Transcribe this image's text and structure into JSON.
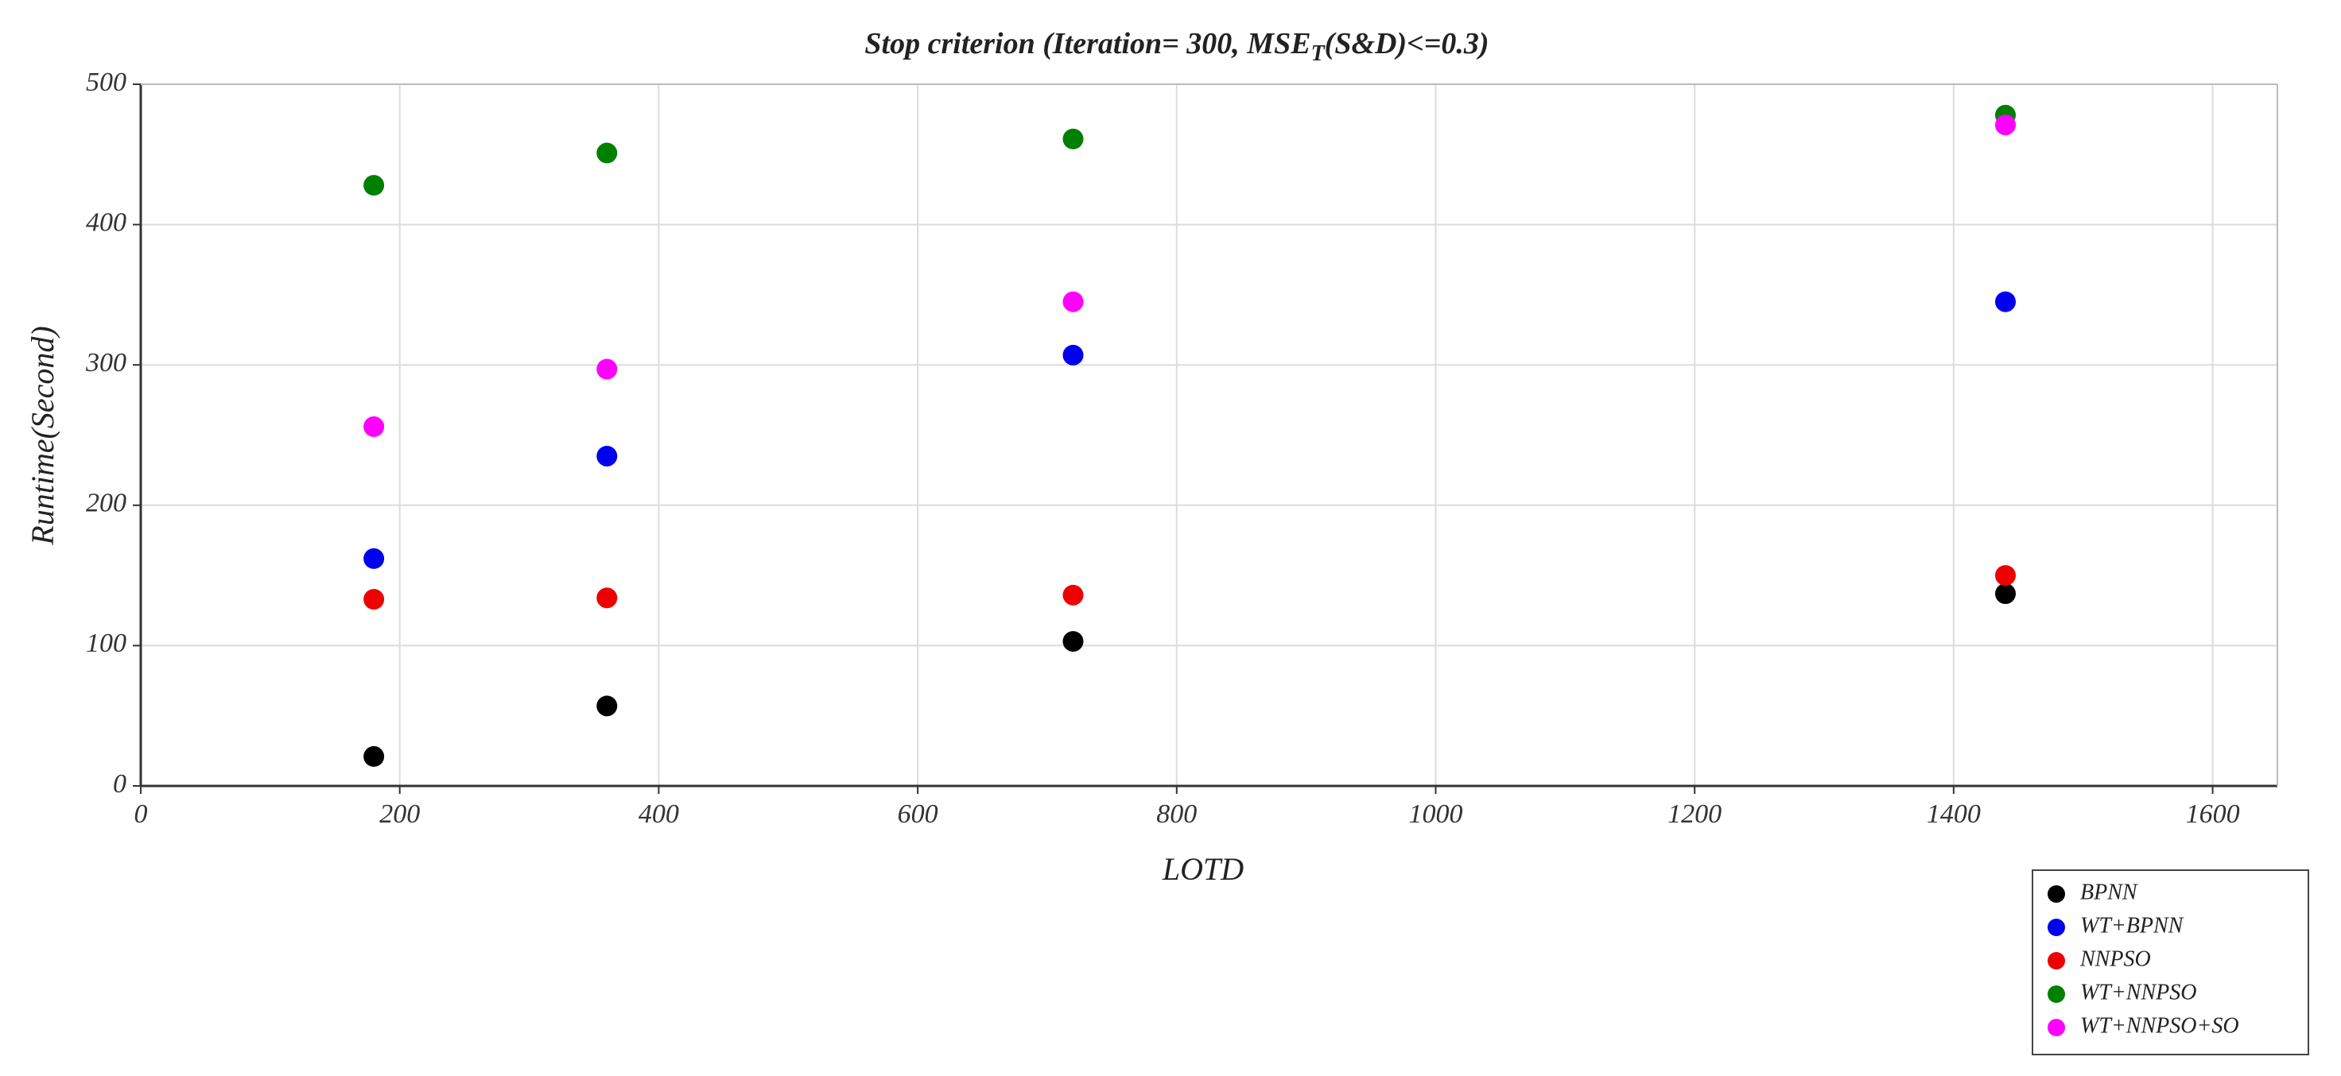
{
  "chart_data": {
    "type": "scatter",
    "title": [
      "Stop criterion (Iteration= 300, MSE",
      "T",
      "(S&D)<=0.3)"
    ],
    "xlabel": "LOTD",
    "ylabel": "Runtime(Second)",
    "xlim": [
      0,
      1650
    ],
    "ylim": [
      0,
      500
    ],
    "xticks": [
      0,
      200,
      400,
      600,
      800,
      1000,
      1200,
      1400,
      1600
    ],
    "yticks": [
      0,
      100,
      200,
      300,
      400,
      500
    ],
    "grid": true,
    "legend": "lower right outside",
    "series": [
      {
        "name": "BPNN",
        "color": "#000000",
        "x": [
          180,
          360,
          720,
          1440
        ],
        "values": [
          21,
          57,
          103,
          137
        ]
      },
      {
        "name": "WT+BPNN",
        "color": "#0000ee",
        "x": [
          180,
          360,
          720,
          1440
        ],
        "values": [
          162,
          235,
          307,
          345
        ]
      },
      {
        "name": "NNPSO",
        "color": "#ee0000",
        "x": [
          180,
          360,
          720,
          1440
        ],
        "values": [
          133,
          134,
          136,
          150
        ]
      },
      {
        "name": "WT+NNPSO",
        "color": "#008000",
        "x": [
          180,
          360,
          720,
          1440
        ],
        "values": [
          428,
          451,
          461,
          478
        ]
      },
      {
        "name": "WT+NNPSO+SO",
        "color": "#ff00ff",
        "x": [
          180,
          360,
          720,
          1440
        ],
        "values": [
          256,
          297,
          345,
          471
        ]
      }
    ]
  }
}
